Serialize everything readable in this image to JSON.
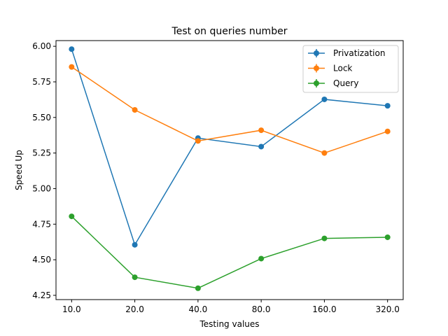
{
  "chart_data": {
    "type": "line",
    "title": "Test on queries number",
    "xlabel": "Testing values",
    "ylabel": "Speed Up",
    "categories": [
      "10.0",
      "20.0",
      "40.0",
      "80.0",
      "160.0",
      "320.0"
    ],
    "yticks": [
      "4.25",
      "4.50",
      "4.75",
      "5.00",
      "5.25",
      "5.50",
      "5.75",
      "6.00"
    ],
    "ylim": [
      4.22,
      6.04
    ],
    "grid": false,
    "legend_position": "top-right",
    "series": [
      {
        "name": "Privatization",
        "color": "#1f77b4",
        "values": [
          5.98,
          4.605,
          5.355,
          5.295,
          5.627,
          5.582
        ]
      },
      {
        "name": "Lock",
        "color": "#ff7f0e",
        "values": [
          5.855,
          5.553,
          5.335,
          5.41,
          5.25,
          5.402
        ]
      },
      {
        "name": "Query",
        "color": "#2ca02c",
        "values": [
          4.805,
          4.377,
          4.3,
          4.508,
          4.65,
          4.658
        ]
      }
    ]
  }
}
